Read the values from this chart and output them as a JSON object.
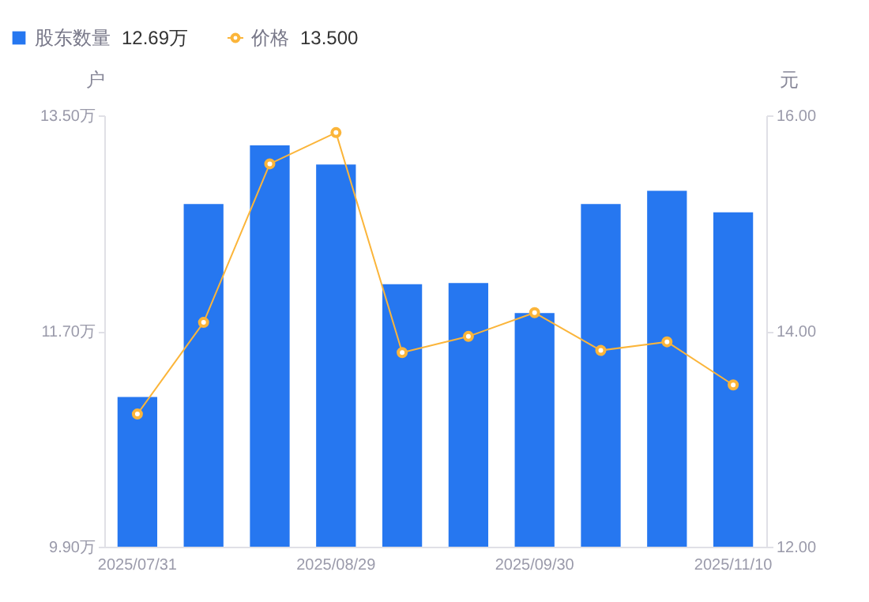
{
  "chart_data": {
    "type": "bar",
    "categories": [
      "2025/07/31",
      null,
      null,
      "2025/08/29",
      null,
      null,
      "2025/09/30",
      null,
      null,
      "2025/11/10"
    ],
    "series": [
      {
        "name": "股东数量",
        "color": "#2677f0",
        "values": [
          11.15,
          12.76,
          13.25,
          13.09,
          12.09,
          12.1,
          11.85,
          12.76,
          12.87,
          12.69
        ]
      },
      {
        "name": "价格",
        "type": "line",
        "axis": "y2",
        "color": "#fbb53a",
        "marker": "circle",
        "values": [
          13.23,
          14.08,
          15.55,
          15.84,
          13.8,
          13.95,
          14.17,
          13.82,
          13.9,
          13.5
        ]
      }
    ],
    "annotations": [
      "12.69万",
      "13.500"
    ],
    "ylabel": "户",
    "y2label": "元",
    "ylim": [
      9.9,
      13.5
    ],
    "yticks": [
      {
        "value": 9.9,
        "label": "9.90万"
      },
      {
        "value": 11.7,
        "label": "11.70万"
      },
      {
        "value": 13.5,
        "label": "13.50万"
      }
    ],
    "y2lim": [
      12,
      16
    ],
    "y2ticks": [
      {
        "value": 12,
        "label": "12.00"
      },
      {
        "value": 14,
        "label": "14.00"
      },
      {
        "value": 16,
        "label": "16.00"
      }
    ],
    "grid": false,
    "legend": "top left",
    "line_style": "solid"
  }
}
